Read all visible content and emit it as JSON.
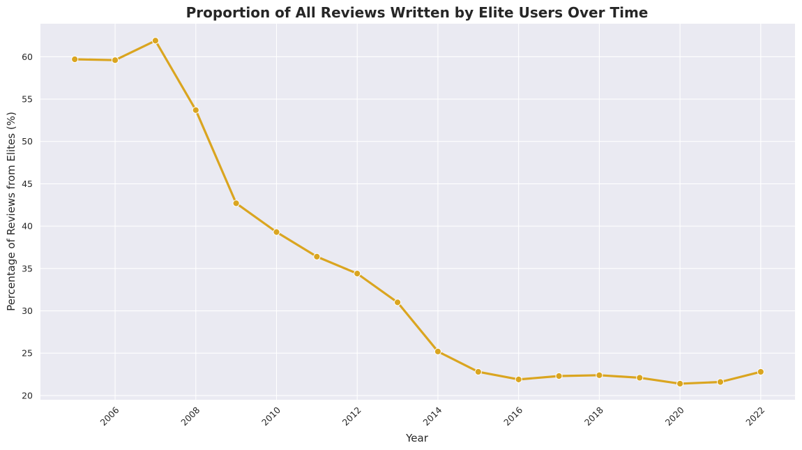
{
  "chart_data": {
    "type": "line",
    "title": "Proportion of All Reviews Written by Elite Users Over Time",
    "xlabel": "Year",
    "ylabel": "Percentage of Reviews from Elites (%)",
    "x": [
      2005,
      2006,
      2007,
      2008,
      2009,
      2010,
      2011,
      2012,
      2013,
      2014,
      2015,
      2016,
      2017,
      2018,
      2019,
      2020,
      2021,
      2022
    ],
    "series": [
      {
        "values": [
          59.7,
          59.6,
          61.9,
          53.7,
          42.7,
          39.3,
          36.4,
          34.4,
          31.0,
          25.2,
          22.8,
          21.9,
          22.3,
          22.4,
          22.1,
          21.4,
          21.6,
          22.8
        ]
      }
    ],
    "xticks": [
      2006,
      2008,
      2010,
      2012,
      2014,
      2016,
      2018,
      2020,
      2022
    ],
    "xtick_labels": [
      "2006",
      "2008",
      "2010",
      "2012",
      "2014",
      "2016",
      "2018",
      "2020",
      "2022"
    ],
    "xtick_rotation": 45,
    "xlim": [
      2004.15,
      2022.85
    ],
    "yticks": [
      20,
      25,
      30,
      35,
      40,
      45,
      50,
      55,
      60
    ],
    "ytick_labels": [
      "20",
      "25",
      "30",
      "35",
      "40",
      "45",
      "50",
      "55",
      "60"
    ],
    "ylim": [
      19.5,
      63.9
    ],
    "grid": true,
    "legend": false,
    "colors": {
      "line": "#DAA520",
      "marker_edge": "#ffffff",
      "plot_background": "#EAEAF2",
      "grid": "#ffffff",
      "text": "#262626"
    },
    "marker": "circle"
  }
}
